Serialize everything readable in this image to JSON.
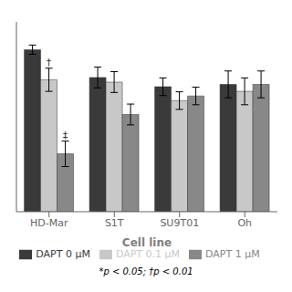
{
  "chart_data": {
    "type": "bar",
    "categories": [
      "HD-Mar",
      "S1T",
      "SU9T01",
      "Oh"
    ],
    "xlabel": "Cell line",
    "ylim": [
      0.3,
      1.12
    ],
    "tick_labels": "x",
    "grid": false,
    "legend": "bottom",
    "footnote": "*p < 0.05; †p < 0.01",
    "series": [
      {
        "name": "DAPT 0 μM",
        "color": "#3a3a3a",
        "values": [
          1.0,
          0.88,
          0.84,
          0.85
        ],
        "errors": [
          0.02,
          0.045,
          0.038,
          0.058
        ],
        "annotations": [
          null,
          null,
          null,
          null
        ]
      },
      {
        "name": "DAPT 0.1 μM",
        "color": "#c8c8c8",
        "values": [
          0.87,
          0.86,
          0.78,
          0.82
        ],
        "errors": [
          0.05,
          0.045,
          0.038,
          0.058
        ],
        "annotations": [
          "†",
          null,
          null,
          null
        ]
      },
      {
        "name": "DAPT 1 μM",
        "color": "#888888",
        "values": [
          0.55,
          0.72,
          0.8,
          0.85
        ],
        "errors": [
          0.055,
          0.045,
          0.038,
          0.058
        ],
        "annotations": [
          "‡",
          null,
          null,
          null
        ]
      }
    ]
  }
}
